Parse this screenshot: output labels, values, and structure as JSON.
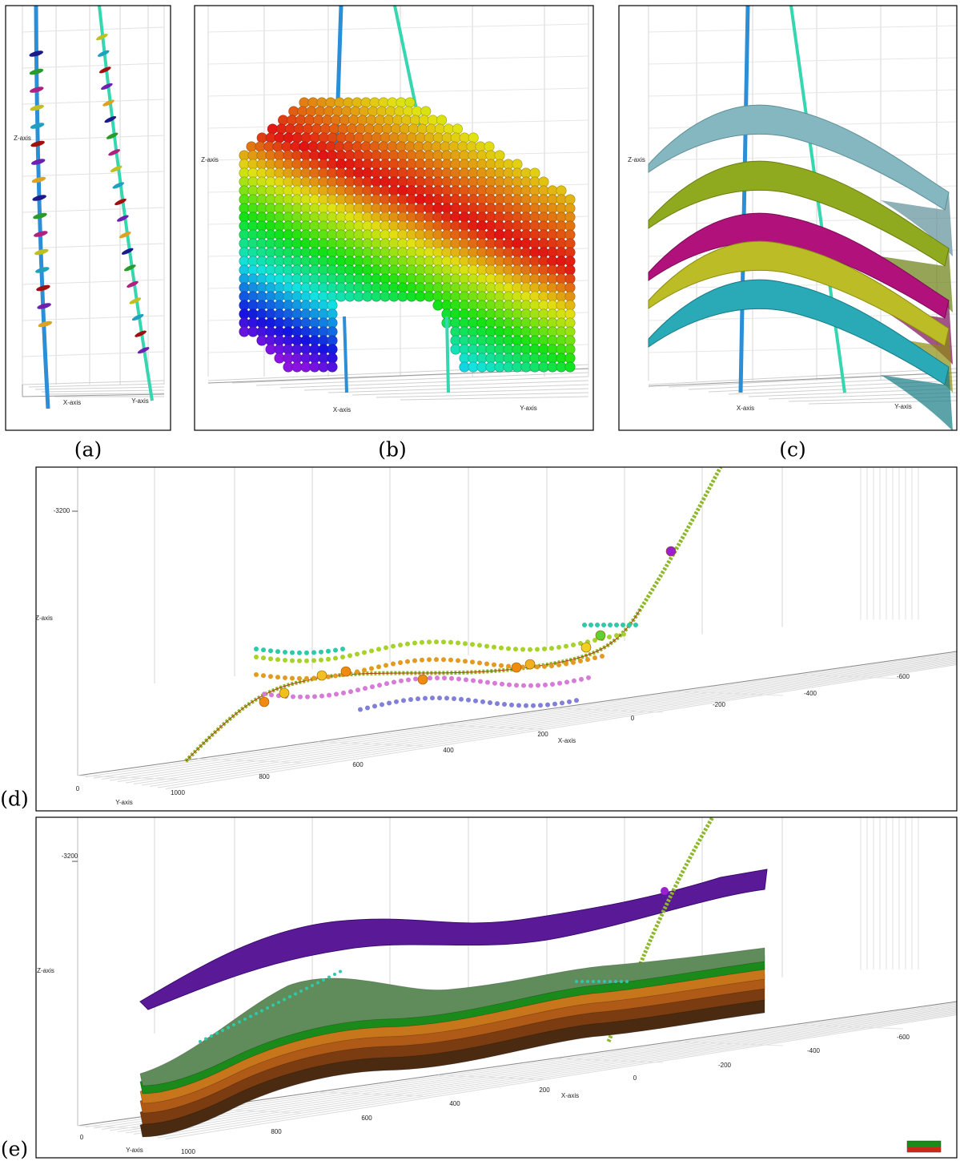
{
  "panels": [
    {
      "label": "(a)",
      "axes": {
        "z": "Z-axis",
        "x": "X-axis",
        "y": "Y-axis"
      }
    },
    {
      "label": "(b)",
      "axes": {
        "z": "Z-axis",
        "x": "X-axis",
        "y": "Y-axis"
      }
    },
    {
      "label": "(c)",
      "axes": {
        "z": "Z-axis",
        "x": "X-axis",
        "y": "Y-axis"
      }
    },
    {
      "label": "(d)",
      "axes": {
        "z": "Z-axis",
        "x": "X-axis",
        "y": "Y-axis"
      },
      "ticks": [
        "-3200",
        "0",
        "1000",
        "800",
        "600",
        "400",
        "200",
        "0",
        "-200",
        "-400",
        "-600"
      ]
    },
    {
      "label": "(e)",
      "axes": {
        "z": "Z-axis",
        "x": "X-axis",
        "y": "Y-axis"
      },
      "ticks": [
        "-3200",
        "0",
        "1000",
        "800",
        "600",
        "400",
        "200",
        "0",
        "-200",
        "-400",
        "-600"
      ]
    }
  ]
}
